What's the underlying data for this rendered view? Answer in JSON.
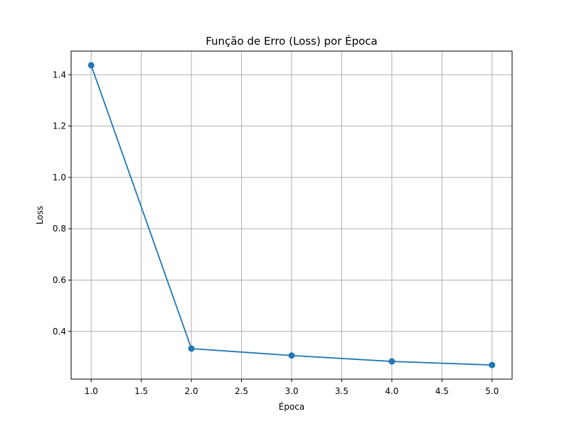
{
  "chart_data": {
    "type": "line",
    "title": "Função de Erro (Loss) por Época",
    "xlabel": "Época",
    "ylabel": "Loss",
    "x": [
      1,
      2,
      3,
      4,
      5
    ],
    "series": [
      {
        "values": [
          1.437,
          0.333,
          0.306,
          0.283,
          0.269
        ],
        "color": "#1f77b4",
        "marker": "circle"
      }
    ],
    "xlim": [
      0.8,
      5.2
    ],
    "ylim": [
      0.214,
      1.492
    ],
    "x_ticks": [
      1.0,
      1.5,
      2.0,
      2.5,
      3.0,
      3.5,
      4.0,
      4.5,
      5.0
    ],
    "x_tick_labels": [
      "1.0",
      "1.5",
      "2.0",
      "2.5",
      "3.0",
      "3.5",
      "4.0",
      "4.5",
      "5.0"
    ],
    "y_ticks": [
      0.4,
      0.6,
      0.8,
      1.0,
      1.2,
      1.4
    ],
    "y_tick_labels": [
      "0.4",
      "0.6",
      "0.8",
      "1.0",
      "1.2",
      "1.4"
    ],
    "grid": true,
    "colors": {
      "line": "#1f77b4",
      "grid": "#b0b0b0",
      "axes": "#000000",
      "background": "#ffffff"
    }
  }
}
